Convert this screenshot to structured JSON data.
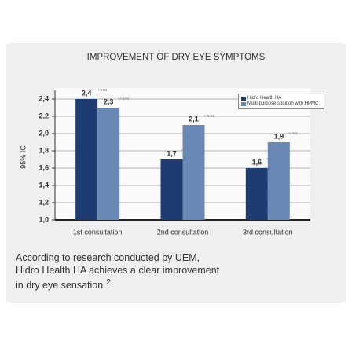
{
  "chart_data": {
    "type": "bar",
    "title": "IMPROVEMENT OF DRY EYE SYMPTOMS",
    "ylabel": "95% IC",
    "categories": [
      "1st consultation",
      "2nd consultation",
      "3rd consultation"
    ],
    "series": [
      {
        "name": "Hidro Health HA",
        "color": "#1f3c72",
        "values": [
          2.4,
          1.7,
          1.6
        ],
        "value_labels": [
          "2,4",
          "1,7",
          "1,6"
        ],
        "error_labels": [
          "+/-0.04",
          "+/-0.3",
          "+/-0.3"
        ]
      },
      {
        "name": "Multi-purpose solution with HPMC",
        "color": "#6a88b6",
        "values": [
          2.3,
          2.1,
          1.9
        ],
        "value_labels": [
          "2,3",
          "2,1",
          "1,9"
        ],
        "error_labels": [
          "+/-0.04",
          "+/-0.03",
          "+/-0.2"
        ]
      }
    ],
    "ylim": [
      1.0,
      2.5
    ],
    "yticks": [
      {
        "value": 1.0,
        "label": "1,0"
      },
      {
        "value": 1.2,
        "label": "1,2"
      },
      {
        "value": 1.4,
        "label": "1,4"
      },
      {
        "value": 1.6,
        "label": "1,6"
      },
      {
        "value": 1.8,
        "label": "1,8"
      },
      {
        "value": 2.0,
        "label": "2,0"
      },
      {
        "value": 2.2,
        "label": "2,2"
      },
      {
        "value": 2.4,
        "label": "2,4"
      }
    ],
    "grid": true,
    "legend": "upper right",
    "caption": [
      "According to research conducted by UEM,",
      "Hidro Health HA achieves a clear improvement",
      "in dry eye sensation"
    ],
    "caption_note": "2"
  }
}
